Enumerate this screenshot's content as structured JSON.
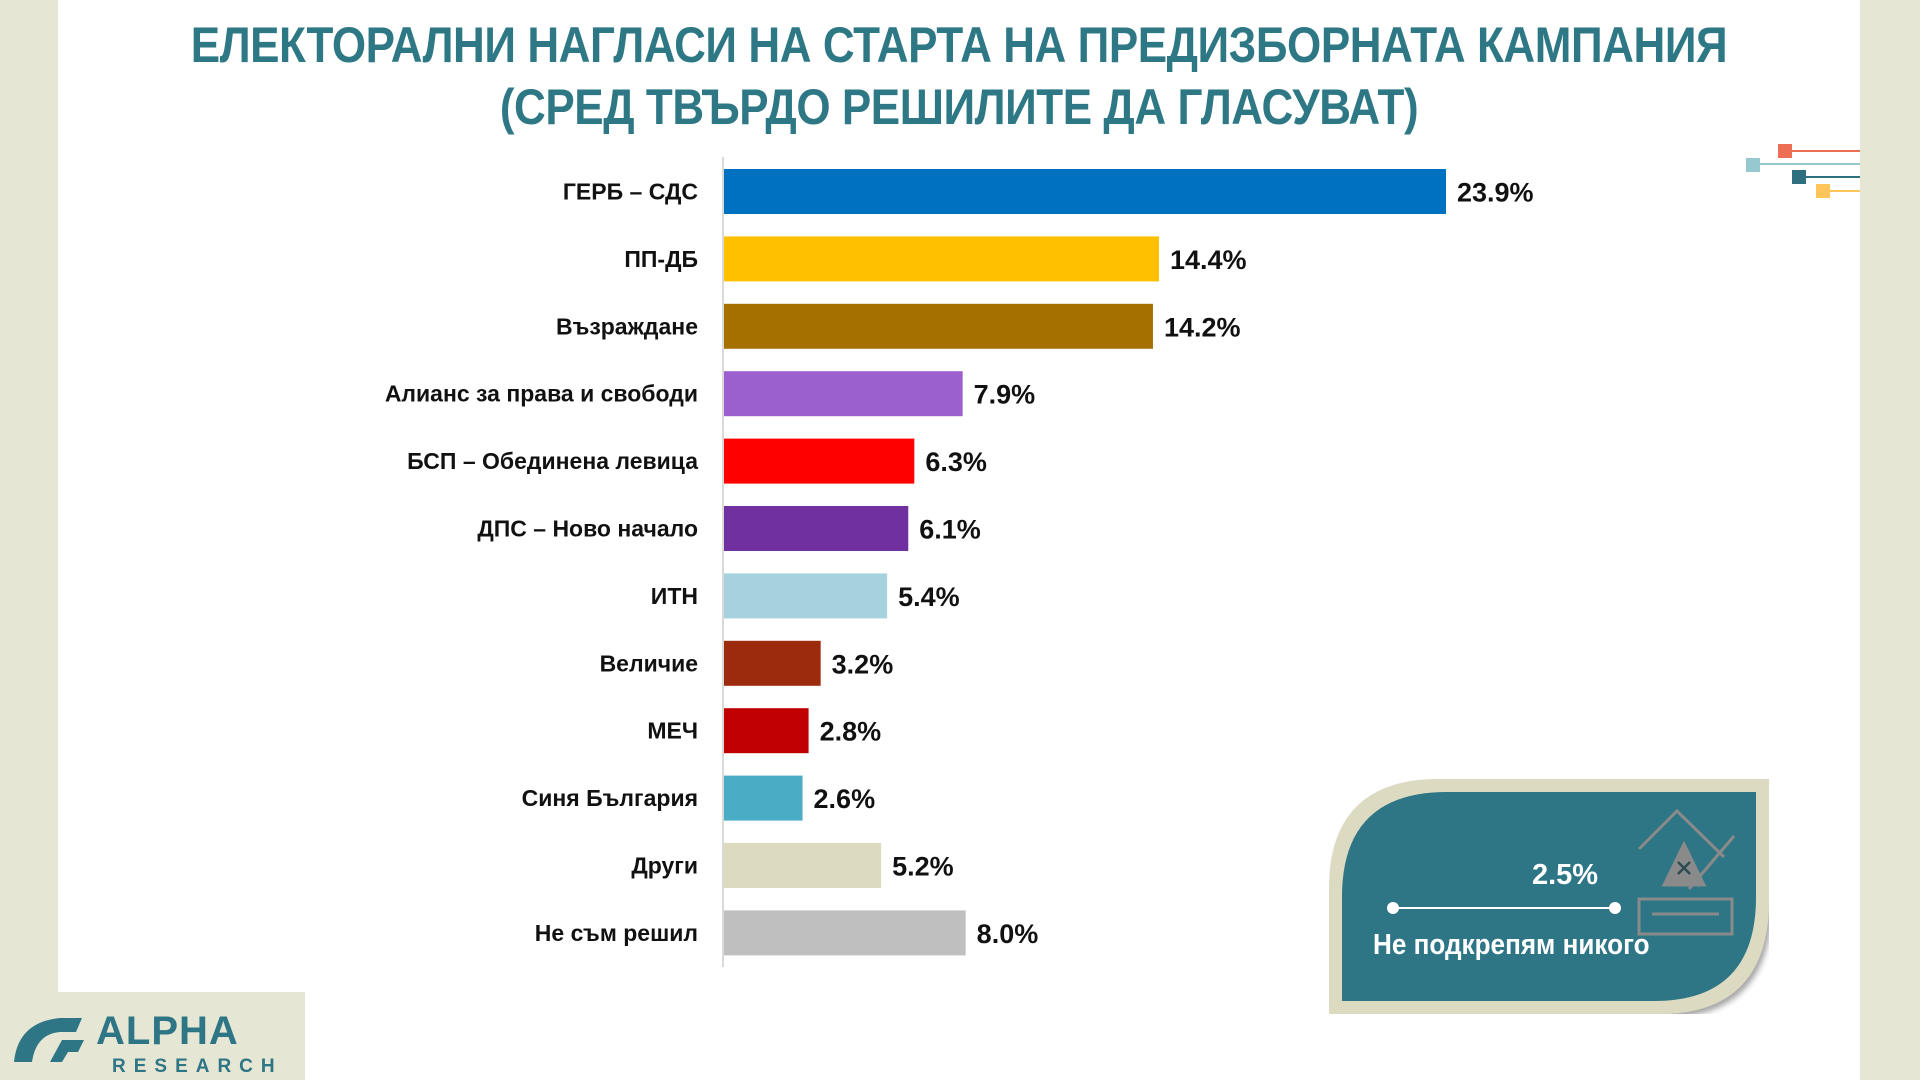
{
  "chart_data": {
    "type": "bar",
    "orientation": "horizontal",
    "title": "ЕЛЕКТОРАЛНИ НАГЛАСИ НА СТАРТА НА ПРЕДИЗБОРНАТА КАМПАНИЯ",
    "subtitle": "(СРЕД ТВЪРДО РЕШИЛИТЕ ДА ГЛАСУВАТ)",
    "categories": [
      "ГЕРБ – СДС",
      "ПП-ДБ",
      "Възраждане",
      "Алианс за права и свободи",
      "БСП – Обединена левица",
      "ДПС – Ново начало",
      "ИТН",
      "Величие",
      "МЕЧ",
      "Синя България",
      "Други",
      "Не съм решил"
    ],
    "values": [
      23.9,
      14.4,
      14.2,
      7.9,
      6.3,
      6.1,
      5.4,
      3.2,
      2.8,
      2.6,
      5.2,
      8.0
    ],
    "value_labels": [
      "23.9%",
      "14.4%",
      "14.2%",
      "7.9%",
      "6.3%",
      "6.1%",
      "5.4%",
      "3.2%",
      "2.8%",
      "2.6%",
      "5.2%",
      "8.0%"
    ],
    "colors": [
      "#0070c0",
      "#ffc000",
      "#a67000",
      "#9b5fce",
      "#ff0000",
      "#7030a0",
      "#a5d2dc",
      "#9c2a0c",
      "#c00000",
      "#4bacc6",
      "#dddbbf",
      "#bfbfbf"
    ],
    "xlim": [
      0,
      25
    ],
    "grid": false,
    "legend": "none"
  },
  "callout": {
    "value": "2.5%",
    "label": "Не подкрепям никого",
    "icon": "ballot-box-icon",
    "fill": "#2e7585",
    "border": "#dcdac0"
  },
  "logo": {
    "text": "ALPHA RESEARCH"
  },
  "accent": "#2e7886"
}
